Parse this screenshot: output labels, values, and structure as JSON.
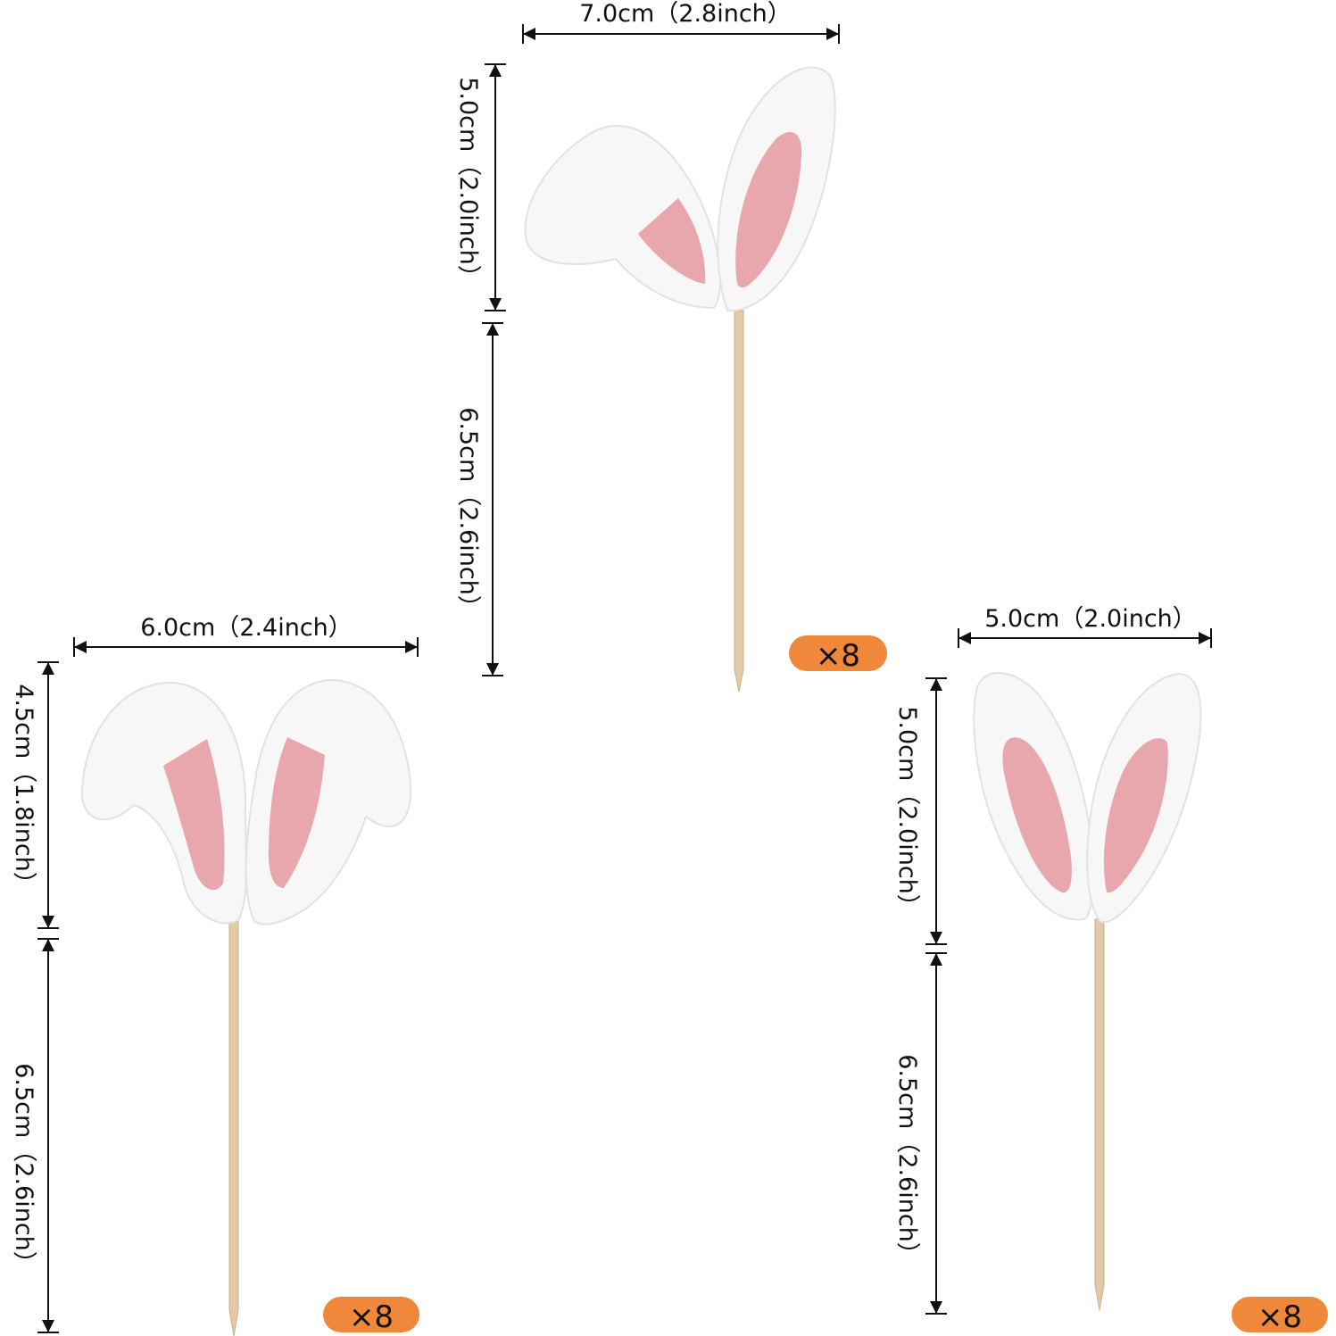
{
  "colors": {
    "ear_outer": "#f7f7f7",
    "ear_inner": "#e8a7ad",
    "stick": "#e3c9a7",
    "badge": "#f0883b",
    "dimension_line": "#111111"
  },
  "toppers": [
    {
      "id": "floppy-ears",
      "width_label": "7.0cm（2.8inch）",
      "ear_height_label": "5.0cm（2.0inch）",
      "stick_height_label": "6.5cm（2.6inch）",
      "quantity_label": "×8"
    },
    {
      "id": "droopy-ears",
      "width_label": "6.0cm（2.4inch）",
      "ear_height_label": "4.5cm（1.8inch）",
      "stick_height_label": "6.5cm（2.6inch）",
      "quantity_label": "×8"
    },
    {
      "id": "upright-ears",
      "width_label": "5.0cm（2.0inch）",
      "ear_height_label": "5.0cm（2.0inch）",
      "stick_height_label": "6.5cm（2.6inch）",
      "quantity_label": "×8"
    }
  ]
}
